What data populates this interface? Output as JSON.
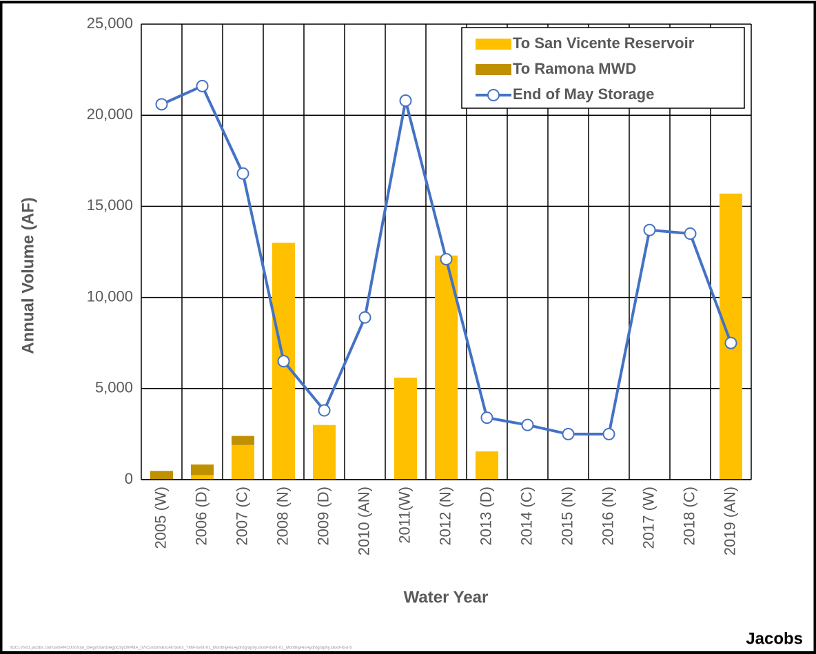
{
  "chart_data": {
    "type": "combo",
    "x_label": "Water Year",
    "y_label": "Annual Volume (AF)",
    "categories": [
      "2005 (W)",
      "2006 (D)",
      "2007 (C)",
      "2008 (N)",
      "2009 (D)",
      "2010 (AN)",
      "2011(W)",
      "2012 (N)",
      "2013 (D)",
      "2014 (C)",
      "2015 (N)",
      "2016 (N)",
      "2017 (W)",
      "2018 (C)",
      "2019 (AN)"
    ],
    "series": [
      {
        "name": "To San Vicente Reservoir",
        "type": "bar",
        "color": "#FFC000",
        "values": [
          0,
          250,
          1900,
          13000,
          3000,
          0,
          5600,
          12300,
          1550,
          0,
          0,
          0,
          0,
          0,
          15700
        ]
      },
      {
        "name": "To Ramona MWD",
        "type": "bar",
        "color": "#BF9000",
        "values": [
          480,
          580,
          500,
          0,
          0,
          0,
          0,
          0,
          0,
          0,
          0,
          0,
          0,
          0,
          0
        ]
      },
      {
        "name": "End of May Storage",
        "type": "line",
        "color": "#4472C4",
        "values": [
          20600,
          21600,
          16800,
          6500,
          3800,
          8900,
          20800,
          12100,
          3400,
          3000,
          2500,
          2500,
          13700,
          13500,
          7500
        ]
      }
    ],
    "ylim": [
      0,
      25000
    ],
    "yticks": [
      0,
      {
        "value": 5000,
        "label": "5,000"
      },
      {
        "value": 10000,
        "label": "10,000"
      },
      {
        "value": 15000,
        "label": "15,000"
      },
      {
        "value": 20000,
        "label": "20,000"
      },
      {
        "value": 25000,
        "label": "25,000"
      }
    ],
    "grid": true,
    "legend": "top-right",
    "footer_path": "\\\\DC1VS01.jacobs.com\\GISPROJ\\S\\San_Diego\\SanDiegoCityOf\\PMA_07\\Custom\\Excel\\Task3_TM\\FIG04-01_MonthlyHisHydrography.xlsx\\FIG04-01_MonthlyHisHydrography.xlsx\\FIG4-5",
    "logo": "Jacobs"
  }
}
